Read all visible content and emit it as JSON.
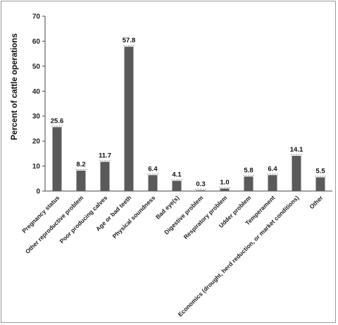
{
  "chart_data": {
    "type": "bar",
    "title": "",
    "xlabel": "",
    "ylabel": "Percent of cattle operations",
    "ylim": [
      0,
      70
    ],
    "yticks": [
      0,
      10,
      20,
      30,
      40,
      50,
      60,
      70
    ],
    "grid": false,
    "legend": "none",
    "categories": [
      "Pregnancy status",
      "Other reproductive problem",
      "Poor producing calves",
      "Age or bad teeth",
      "Physical soundness",
      "Bad eye(s)",
      "Digestive problem",
      "Respiratory problem",
      "Udder problem",
      "Temperament",
      "Economics (drought, herd reduction, or market conditions)",
      "Other"
    ],
    "values": [
      25.6,
      8.2,
      11.7,
      57.8,
      6.4,
      4.1,
      0.3,
      1.0,
      5.8,
      6.4,
      14.1,
      5.5
    ],
    "data_labels": [
      "25.6",
      "8.2",
      "11.7",
      "57.8",
      "6.4",
      "4.1",
      "0.3",
      "1.0",
      "5.8",
      "6.4",
      "14.1",
      "5.5"
    ],
    "colors": {
      "bar": "#5a5a5a",
      "axis": "#444444",
      "errorbar": "#9a9a9a"
    }
  }
}
